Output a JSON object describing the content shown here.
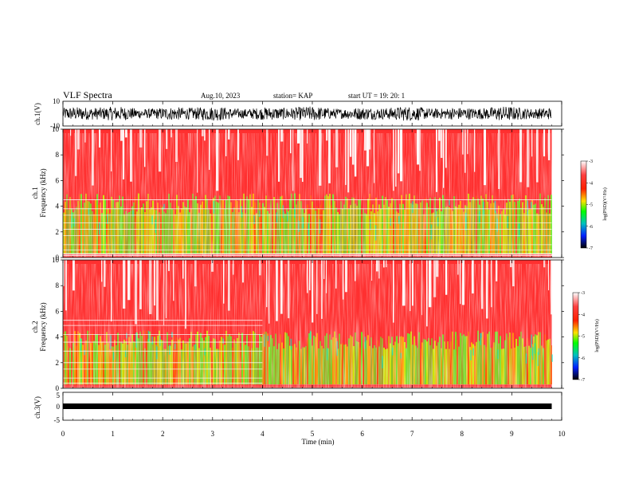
{
  "header": {
    "title": "VLF Spectra",
    "date": "Aug.10, 2023",
    "station": "station= KAP",
    "start": "start  UT =    19: 20: 1"
  },
  "panels": {
    "ch1_wave": {
      "ylabel": "ch.1(V)",
      "ytick_top": "10",
      "ytick_bottom": "-10"
    },
    "ch1_spec": {
      "ylabel_line1": "ch.1",
      "ylabel_line2": "Frequency  (kHz)",
      "cbar_label": "log(PSD)(V²/Hz)"
    },
    "ch2_spec": {
      "ylabel_line1": "ch.2",
      "ylabel_line2": "Frequency  (kHz)",
      "cbar_label": "log(PSD)(V²/Hz)"
    },
    "ch3_wave": {
      "ylabel": "ch.3(V)",
      "ytick_top": "5",
      "ytick_mid": "0",
      "ytick_bottom": "-5"
    },
    "xlabel": "Time  (min)"
  },
  "chart_data": [
    {
      "type": "line",
      "name": "ch1-waveform",
      "xlabel": "",
      "ylabel": "ch.1(V)",
      "xlim": [
        0,
        10
      ],
      "ylim": [
        -10,
        10
      ],
      "data_extent_min": 9.8,
      "approx_amplitude_v": [
        -8,
        7
      ]
    },
    {
      "type": "heatmap",
      "name": "ch1-spectrogram",
      "ylabel": "Frequency  (kHz)",
      "xlim": [
        0,
        10
      ],
      "ylim": [
        0,
        10
      ],
      "yticks": [
        0,
        2,
        4,
        6,
        8,
        10
      ],
      "colorbar": {
        "label": "log(PSD)(V²/Hz)",
        "range": [
          -7,
          -3
        ],
        "ticks": [
          -3,
          -4,
          -5,
          -6,
          -7
        ]
      },
      "green_band_top_khz": 5,
      "hum_lines_khz": [
        0.3,
        0.6,
        1.0,
        1.7,
        2.2,
        2.7,
        3.3,
        3.8,
        4.5
      ]
    },
    {
      "type": "heatmap",
      "name": "ch2-spectrogram",
      "ylabel": "Frequency  (kHz)",
      "xlim": [
        0,
        10
      ],
      "ylim": [
        0,
        10
      ],
      "yticks": [
        0,
        2,
        4,
        6,
        8,
        10
      ],
      "colorbar": {
        "label": "log(PSD)(V²/Hz)",
        "range": [
          -7,
          -3
        ],
        "ticks": [
          -3,
          -4,
          -5,
          -6,
          -7
        ]
      },
      "green_band_top_khz": 4.5,
      "hum_lines_khz": [
        0.4,
        0.8,
        1.5,
        2.0,
        2.9,
        3.6,
        4.2,
        4.9,
        5.3
      ],
      "hum_lines_end_min": 4.0
    },
    {
      "type": "line",
      "name": "ch3-waveform",
      "ylabel": "ch.3(V)",
      "xlabel": "Time  (min)",
      "xlim": [
        0,
        10
      ],
      "ylim": [
        -5,
        5
      ],
      "xticks": [
        0,
        1,
        2,
        3,
        4,
        5,
        6,
        7,
        8,
        9,
        10
      ],
      "approx_level_v": 0,
      "approx_band_v": [
        -1,
        1
      ]
    }
  ]
}
